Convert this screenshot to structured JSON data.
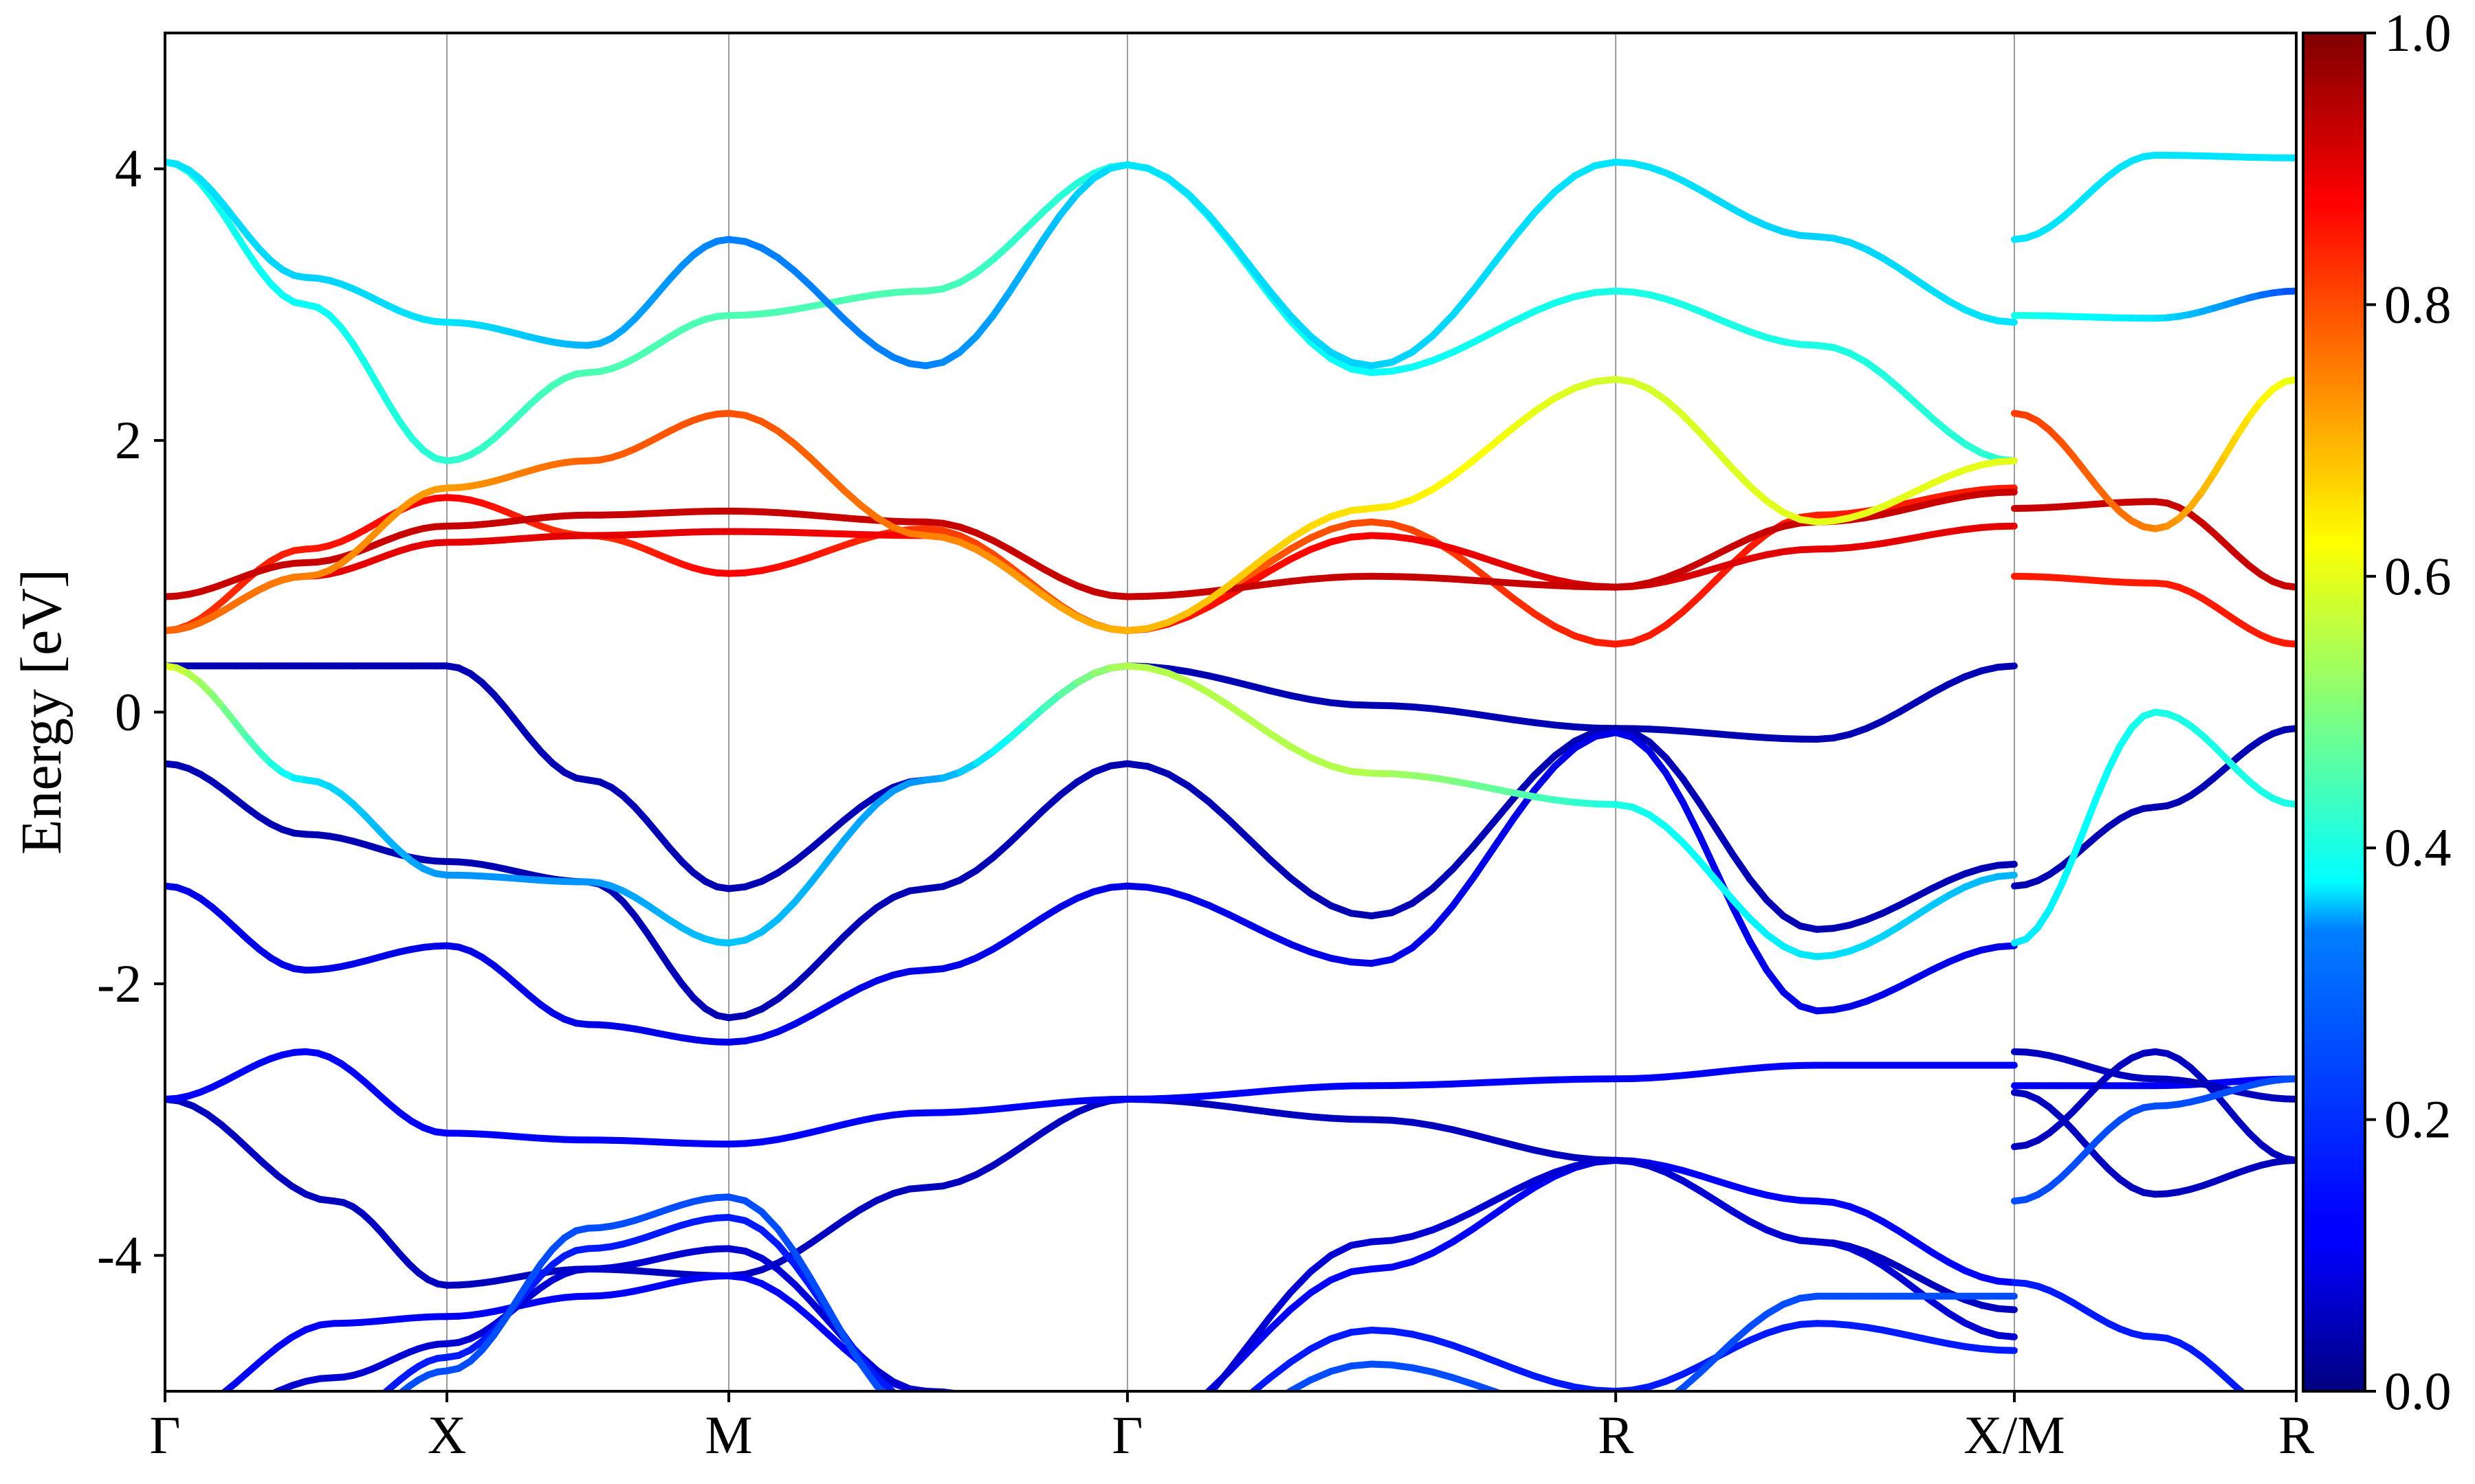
{
  "chart_data": {
    "type": "line",
    "title": "",
    "xlabel": "",
    "ylabel": "Energy [eV]",
    "ylim": [
      -5,
      5
    ],
    "y_ticks": [
      "-4",
      "-2",
      "0",
      "2",
      "4"
    ],
    "k_path_labels": [
      "Γ",
      "X",
      "M",
      "Γ",
      "R",
      "X/M",
      "R"
    ],
    "k_path_positions": [
      0,
      0.5,
      1.0,
      1.707,
      2.573,
      3.28,
      3.78
    ],
    "colorbar": {
      "min": 0,
      "max": 1,
      "ticks": [
        "0.0",
        "0.2",
        "0.4",
        "0.6",
        "0.8",
        "1.0"
      ],
      "colormap": "jet"
    },
    "grid": "vertical lines at high-symmetry points",
    "series": [
      {
        "x": [
          0,
          0.25,
          0.5,
          0.75,
          1.0,
          1.35,
          1.707,
          2.14,
          2.573,
          2.93,
          3.28
        ],
        "y": [
          0.34,
          0.34,
          0.34,
          -0.5,
          -1.3,
          -0.5,
          0.34,
          0.05,
          -0.12,
          -0.2,
          0.34
        ],
        "c": [
          0.05,
          0.05,
          0.05,
          0.05,
          0.05,
          0.05,
          0.05,
          0.05,
          0.05,
          0.05,
          0.05
        ]
      },
      {
        "x": [
          3.28,
          3.53,
          3.78
        ],
        "y": [
          -1.28,
          -0.7,
          -0.12
        ],
        "c": [
          0.05,
          0.05,
          0.05
        ]
      },
      {
        "x": [
          0,
          0.25,
          0.5,
          0.75,
          1.0,
          1.35,
          1.707,
          2.14,
          2.573,
          2.93,
          3.28
        ],
        "y": [
          -0.38,
          -0.9,
          -1.1,
          -1.25,
          -2.25,
          -1.3,
          -0.38,
          -1.5,
          -0.12,
          -1.6,
          -1.12
        ],
        "c": [
          0.05,
          0.05,
          0.05,
          0.05,
          0.05,
          0.05,
          0.05,
          0.05,
          0.05,
          0.05,
          0.05
        ]
      },
      {
        "x": [
          0,
          0.25,
          0.5,
          0.75,
          1.0,
          1.35,
          1.707,
          2.14,
          2.573,
          2.93,
          3.28
        ],
        "y": [
          -1.28,
          -1.9,
          -1.72,
          -2.3,
          -2.43,
          -1.9,
          -1.28,
          -1.85,
          -0.15,
          -2.2,
          -1.72
        ],
        "c": [
          0.1,
          0.1,
          0.1,
          0.1,
          0.1,
          0.1,
          0.1,
          0.1,
          0.1,
          0.1,
          0.1
        ]
      },
      {
        "x": [
          0,
          0.3,
          0.5,
          0.75,
          1.0,
          1.35,
          1.707,
          2.14,
          2.573,
          2.93,
          3.28
        ],
        "y": [
          -2.85,
          -3.6,
          -4.22,
          -4.1,
          -4.15,
          -3.5,
          -2.85,
          -3.0,
          -3.3,
          -3.9,
          -4.4
        ],
        "c": [
          0.06,
          0.06,
          0.06,
          0.06,
          0.06,
          0.06,
          0.06,
          0.06,
          0.06,
          0.06,
          0.06
        ]
      },
      {
        "x": [
          0,
          0.25,
          0.5,
          0.75,
          1.0,
          1.35,
          1.707,
          2.14,
          2.573,
          2.93,
          3.28
        ],
        "y": [
          -2.85,
          -2.5,
          -3.1,
          -3.15,
          -3.18,
          -2.95,
          -2.85,
          -2.75,
          -2.7,
          -2.6,
          -2.6
        ],
        "c": [
          0.12,
          0.12,
          0.12,
          0.12,
          0.12,
          0.12,
          0.12,
          0.12,
          0.12,
          0.12,
          0.12
        ]
      },
      {
        "x": [
          3.28,
          3.53,
          3.78
        ],
        "y": [
          -2.75,
          -2.75,
          -2.7
        ],
        "c": [
          0.12,
          0.12,
          0.12
        ]
      },
      {
        "x": [
          0,
          0.25,
          0.5,
          0.75,
          1.0,
          1.35,
          1.707,
          2.14,
          2.573,
          2.93,
          3.28
        ],
        "y": [
          0.34,
          -0.5,
          -1.2,
          -1.25,
          -1.7,
          -0.5,
          0.34,
          -0.45,
          -0.68,
          -1.8,
          -1.2
        ],
        "c": [
          0.6,
          0.35,
          0.27,
          0.27,
          0.32,
          0.27,
          0.55,
          0.55,
          0.4,
          0.35,
          0.3
        ]
      },
      {
        "x": [
          3.28,
          3.53,
          3.78
        ],
        "y": [
          -1.7,
          0.0,
          -0.68
        ],
        "c": [
          0.35,
          0.4,
          0.4
        ]
      },
      {
        "x": [
          0,
          0.25,
          0.5,
          0.75,
          1.0,
          1.35,
          1.707,
          2.14,
          2.573,
          2.93,
          3.28
        ],
        "y": [
          0.6,
          1.2,
          1.58,
          1.3,
          1.02,
          1.35,
          0.6,
          1.4,
          0.5,
          1.45,
          1.65
        ],
        "c": [
          0.82,
          0.85,
          0.88,
          0.82,
          0.88,
          0.82,
          0.78,
          0.8,
          0.85,
          0.85,
          0.85
        ]
      },
      {
        "x": [
          0,
          0.25,
          0.5,
          0.75,
          1.0,
          1.35,
          1.707,
          2.14,
          2.573,
          2.93,
          3.28
        ],
        "y": [
          0.6,
          1.0,
          1.25,
          1.3,
          1.33,
          1.3,
          0.6,
          1.3,
          0.92,
          1.2,
          1.37
        ],
        "c": [
          0.88,
          0.9,
          0.9,
          0.9,
          0.9,
          0.88,
          0.85,
          0.88,
          0.92,
          0.9,
          0.9
        ]
      },
      {
        "x": [
          0,
          0.25,
          0.5,
          0.75,
          1.0,
          1.35,
          1.707,
          2.14,
          2.573,
          2.93,
          3.28
        ],
        "y": [
          0.85,
          1.1,
          1.37,
          1.45,
          1.48,
          1.4,
          0.85,
          1.0,
          0.92,
          1.4,
          1.62
        ],
        "c": [
          0.93,
          0.93,
          0.93,
          0.93,
          0.93,
          0.93,
          0.93,
          0.93,
          0.93,
          0.93,
          0.93
        ]
      },
      {
        "x": [
          3.28,
          3.53,
          3.78
        ],
        "y": [
          1.5,
          1.55,
          0.92
        ],
        "c": [
          0.93,
          0.93,
          0.93
        ]
      },
      {
        "x": [
          3.28,
          3.53,
          3.78
        ],
        "y": [
          1.0,
          0.95,
          0.5
        ],
        "c": [
          0.85,
          0.85,
          0.85
        ]
      },
      {
        "x": [
          0,
          0.25,
          0.5,
          0.75,
          1.0,
          1.35,
          1.707,
          2.14,
          2.573,
          2.93,
          3.28
        ],
        "y": [
          4.05,
          3.0,
          1.85,
          2.5,
          2.92,
          3.1,
          4.03,
          2.5,
          3.1,
          2.7,
          1.85
        ],
        "c": [
          0.4,
          0.38,
          0.42,
          0.45,
          0.45,
          0.45,
          0.4,
          0.38,
          0.4,
          0.4,
          0.42
        ]
      },
      {
        "x": [
          0,
          0.25,
          0.5,
          0.75,
          1.0,
          1.35,
          1.707,
          2.14,
          2.573,
          2.93,
          3.28
        ],
        "y": [
          4.05,
          3.2,
          2.87,
          2.7,
          3.48,
          2.55,
          4.03,
          2.55,
          4.05,
          3.5,
          2.87
        ],
        "c": [
          0.35,
          0.33,
          0.35,
          0.3,
          0.25,
          0.25,
          0.35,
          0.33,
          0.35,
          0.33,
          0.35
        ]
      },
      {
        "x": [
          0,
          0.25,
          0.5,
          0.75,
          1.0,
          1.35,
          1.707,
          2.14,
          2.573,
          2.93,
          3.28
        ],
        "y": [
          0.6,
          1.0,
          1.65,
          1.85,
          2.2,
          1.3,
          0.6,
          1.5,
          2.45,
          1.4,
          1.85
        ],
        "c": [
          0.78,
          0.75,
          0.72,
          0.78,
          0.8,
          0.75,
          0.7,
          0.65,
          0.58,
          0.6,
          0.6
        ]
      },
      {
        "x": [
          3.28,
          3.53,
          3.78
        ],
        "y": [
          2.2,
          1.35,
          2.45
        ],
        "c": [
          0.82,
          0.75,
          0.6
        ]
      },
      {
        "x": [
          3.28,
          3.53,
          3.78
        ],
        "y": [
          3.48,
          4.1,
          4.08
        ],
        "c": [
          0.35,
          0.35,
          0.35
        ]
      },
      {
        "x": [
          3.28,
          3.53,
          3.78
        ],
        "y": [
          2.92,
          2.9,
          3.1
        ],
        "c": [
          0.4,
          0.35,
          0.2
        ]
      },
      {
        "x": [
          0,
          0.3,
          0.5,
          0.75,
          1.0,
          1.35,
          1.707,
          2.14,
          2.573,
          2.93,
          3.28
        ],
        "y": [
          -5.2,
          -4.5,
          -4.45,
          -4.3,
          -4.15,
          -5.0,
          -5.3,
          -4.1,
          -3.3,
          -3.6,
          -4.2
        ],
        "c": [
          0.12,
          0.12,
          0.12,
          0.12,
          0.12,
          0.12,
          0.12,
          0.12,
          0.12,
          0.12,
          0.12
        ]
      },
      {
        "x": [
          0,
          0.3,
          0.5,
          0.75,
          1.0,
          1.35,
          1.707,
          2.14,
          2.573,
          2.93,
          3.28
        ],
        "y": [
          -5.3,
          -4.9,
          -4.65,
          -4.1,
          -3.95,
          -5.0,
          -5.4,
          -3.9,
          -3.3,
          -3.9,
          -4.6
        ],
        "c": [
          0.08,
          0.08,
          0.08,
          0.08,
          0.08,
          0.08,
          0.08,
          0.08,
          0.08,
          0.08,
          0.08
        ]
      },
      {
        "x": [
          0,
          0.3,
          0.5,
          0.75,
          1.0,
          1.35,
          1.707,
          2.14,
          2.573,
          2.93,
          3.28
        ],
        "y": [
          -5.4,
          -5.2,
          -4.75,
          -3.95,
          -3.72,
          -5.1,
          -5.5,
          -4.55,
          -5.0,
          -4.5,
          -4.7
        ],
        "c": [
          0.15,
          0.15,
          0.15,
          0.15,
          0.15,
          0.15,
          0.15,
          0.15,
          0.15,
          0.15,
          0.15
        ]
      },
      {
        "x": [
          0,
          0.3,
          0.5,
          0.75,
          1.0,
          1.35,
          1.707,
          2.14,
          2.573,
          2.93,
          3.28
        ],
        "y": [
          -5.5,
          -5.3,
          -4.85,
          -3.8,
          -3.57,
          -5.2,
          -5.6,
          -4.8,
          -5.2,
          -4.3,
          -4.3
        ],
        "c": [
          0.2,
          0.2,
          0.2,
          0.2,
          0.2,
          0.2,
          0.2,
          0.2,
          0.2,
          0.2,
          0.2
        ]
      },
      {
        "x": [
          3.28,
          3.53,
          3.78
        ],
        "y": [
          -2.5,
          -2.7,
          -2.85
        ],
        "c": [
          0.06,
          0.06,
          0.06
        ]
      },
      {
        "x": [
          3.28,
          3.53,
          3.78
        ],
        "y": [
          -3.2,
          -2.5,
          -3.3
        ],
        "c": [
          0.06,
          0.06,
          0.06
        ]
      },
      {
        "x": [
          3.28,
          3.53,
          3.78
        ],
        "y": [
          -2.8,
          -3.55,
          -3.3
        ],
        "c": [
          0.06,
          0.06,
          0.06
        ]
      },
      {
        "x": [
          3.28,
          3.53,
          3.78
        ],
        "y": [
          -4.2,
          -4.6,
          -5.2
        ],
        "c": [
          0.15,
          0.15,
          0.15
        ]
      },
      {
        "x": [
          3.28,
          3.53,
          3.78
        ],
        "y": [
          -3.6,
          -2.9,
          -2.7
        ],
        "c": [
          0.2,
          0.2,
          0.2
        ]
      }
    ]
  }
}
